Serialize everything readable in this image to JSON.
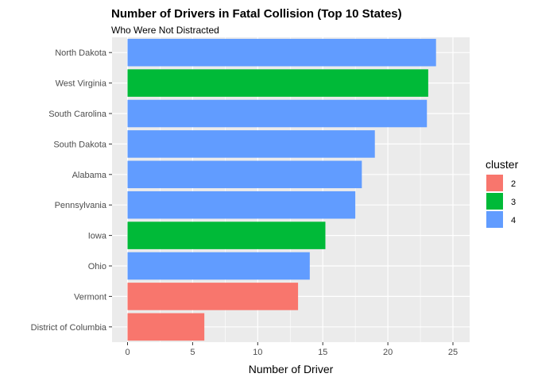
{
  "chart_data": {
    "type": "bar",
    "orientation": "horizontal",
    "title": "Number of Drivers in Fatal Collision (Top 10 States)",
    "subtitle": "Who Were Not Distracted",
    "xlabel": "Number of Driver",
    "ylabel": "",
    "xlim": [
      0,
      26.2
    ],
    "x_ticks": [
      0,
      5,
      10,
      15,
      20,
      25
    ],
    "grid": true,
    "categories": [
      "North Dakota",
      "West Virginia",
      "South Carolina",
      "South Dakota",
      "Alabama",
      "Pennsylvania",
      "Iowa",
      "Ohio",
      "Vermont",
      "District of Columbia"
    ],
    "values": [
      23.7,
      23.1,
      23.0,
      19.0,
      18.0,
      17.5,
      15.2,
      14.0,
      13.1,
      5.9
    ],
    "cluster": [
      "4",
      "3",
      "4",
      "4",
      "4",
      "4",
      "3",
      "4",
      "2",
      "2"
    ],
    "legend": {
      "title": "cluster",
      "position": "right",
      "entries": [
        {
          "label": "2",
          "color": "#F8766D"
        },
        {
          "label": "3",
          "color": "#00BA38"
        },
        {
          "label": "4",
          "color": "#619CFF"
        }
      ]
    },
    "panel_background": "#EBEBEB",
    "grid_color": "#FFFFFF"
  }
}
